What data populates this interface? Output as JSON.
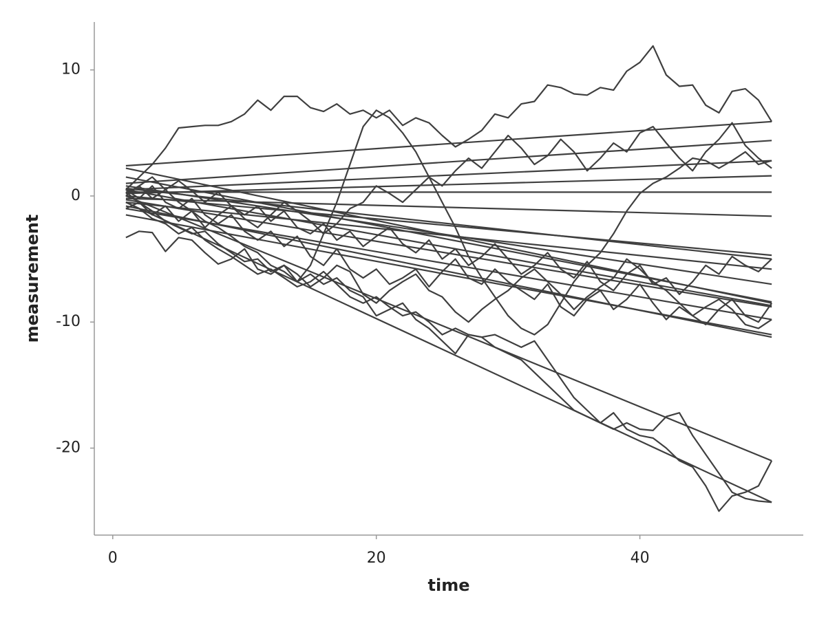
{
  "chart_data": {
    "type": "line",
    "x_label": "time",
    "y_label": "measurement",
    "color": "#3f3f3f",
    "xlim": [
      -1.4,
      52.4
    ],
    "ylim": [
      -26.9,
      13.8
    ],
    "xticks": [
      0,
      20,
      40
    ],
    "yticks": [
      -20,
      -10,
      0,
      10
    ],
    "x": [
      1,
      2,
      3,
      4,
      5,
      6,
      7,
      8,
      9,
      10,
      11,
      12,
      13,
      14,
      15,
      16,
      17,
      18,
      19,
      20,
      21,
      22,
      23,
      24,
      25,
      26,
      27,
      28,
      29,
      30,
      31,
      32,
      33,
      34,
      35,
      36,
      37,
      38,
      39,
      40,
      41,
      42,
      43,
      44,
      45,
      46,
      47,
      48,
      49,
      50
    ],
    "series": [
      {
        "values": [
          0.5,
          1.5,
          2.5,
          3.8,
          5.4,
          5.5,
          5.6,
          5.6,
          5.9,
          6.5,
          7.6,
          6.8,
          7.9,
          7.9,
          7.0,
          6.7,
          7.3,
          6.5,
          6.8,
          6.2,
          6.8,
          5.6,
          6.2,
          5.8,
          4.8,
          3.9,
          4.5,
          5.2,
          6.5,
          6.2,
          7.3,
          7.5,
          8.8,
          8.6,
          8.1,
          8.0,
          8.6,
          8.4,
          9.9,
          10.6,
          11.9,
          9.6,
          8.7,
          8.8,
          7.2,
          6.6,
          8.3,
          8.5,
          7.6,
          5.9
        ]
      },
      {
        "values": [
          0.3,
          -0.5,
          -1.2,
          -2.0,
          -2.5,
          -3.0,
          -2.8,
          -3.8,
          -4.5,
          -5.2,
          -5.0,
          -6.0,
          -5.5,
          -6.8,
          -6.2,
          -7.0,
          -6.5,
          -7.5,
          -8.0,
          -9.5,
          -9.0,
          -8.5,
          -9.8,
          -10.5,
          -11.5,
          -12.5,
          -11.0,
          -11.2,
          -12.0,
          -12.5,
          -13.0,
          -14.0,
          -15.0,
          -16.0,
          -17.0,
          -17.5,
          -18.0,
          -17.2,
          -18.5,
          -19.0,
          -19.2,
          -20.0,
          -21.0,
          -21.5,
          -23.0,
          -25.0,
          -23.8,
          -23.5,
          -23.0,
          -21.0
        ]
      },
      {
        "values": [
          -0.5,
          -1.0,
          -1.8,
          -2.2,
          -3.0,
          -2.5,
          -3.5,
          -4.2,
          -4.8,
          -5.5,
          -6.2,
          -5.8,
          -6.5,
          -7.2,
          -6.8,
          -6.0,
          -7.0,
          -8.0,
          -8.5,
          -8.0,
          -8.8,
          -9.5,
          -9.2,
          -10.0,
          -11.0,
          -10.5,
          -11.0,
          -11.2,
          -11.0,
          -11.5,
          -12.0,
          -11.5,
          -13.0,
          -14.5,
          -16.0,
          -17.0,
          -18.0,
          -18.5,
          -18.0,
          -18.5,
          -18.6,
          -17.5,
          -17.2,
          -19.0,
          -20.5,
          -22.0,
          -23.5,
          -24.0,
          -24.2,
          -24.3
        ]
      },
      {
        "values": [
          0.2,
          0.8,
          1.5,
          0.5,
          -0.5,
          -1.2,
          -2.0,
          -2.5,
          -3.2,
          -4.0,
          -4.5,
          -5.5,
          -6.0,
          -6.8,
          -5.5,
          -3.0,
          -0.5,
          2.5,
          5.5,
          6.8,
          6.2,
          5.0,
          3.5,
          1.5,
          -0.5,
          -2.5,
          -4.8,
          -6.5,
          -8.0,
          -9.5,
          -10.5,
          -11.0,
          -10.2,
          -8.5,
          -6.8,
          -5.5,
          -4.5,
          -3.0,
          -1.2,
          0.2,
          1.0,
          1.5,
          2.2,
          3.0,
          2.8,
          2.2,
          2.8,
          3.5,
          2.5,
          2.8
        ]
      },
      {
        "values": [
          0.0,
          0.8,
          -0.2,
          0.5,
          1.2,
          0.4,
          -0.5,
          0.3,
          -0.8,
          -1.5,
          -0.8,
          -2.0,
          -1.2,
          -2.5,
          -3.0,
          -2.2,
          -3.5,
          -2.8,
          -4.0,
          -3.2,
          -2.5,
          -3.8,
          -4.5,
          -3.5,
          -5.0,
          -4.2,
          -5.5,
          -4.8,
          -3.8,
          -5.0,
          -6.2,
          -5.5,
          -4.5,
          -5.8,
          -6.5,
          -5.2,
          -6.8,
          -7.5,
          -6.2,
          -5.5,
          -7.0,
          -6.5,
          -7.8,
          -6.8,
          -5.5,
          -6.2,
          -4.8,
          -5.5,
          -6.0,
          -5.0
        ]
      },
      {
        "values": [
          -1.0,
          -0.5,
          -1.5,
          -0.8,
          -2.0,
          -1.2,
          -2.5,
          -1.5,
          -0.8,
          -1.8,
          -2.5,
          -1.5,
          -0.5,
          -1.2,
          -2.0,
          -3.0,
          -2.2,
          -1.0,
          -0.5,
          0.8,
          0.2,
          -0.5,
          0.5,
          1.5,
          0.8,
          2.0,
          3.0,
          2.2,
          3.5,
          4.8,
          3.8,
          2.5,
          3.2,
          4.5,
          3.5,
          2.0,
          3.0,
          4.2,
          3.5,
          5.0,
          5.5,
          4.2,
          3.0,
          2.0,
          3.5,
          4.5,
          5.8,
          4.0,
          3.0,
          2.2
        ]
      },
      {
        "values": [
          0.5,
          -0.2,
          0.8,
          -0.5,
          -1.0,
          -0.2,
          -1.5,
          -2.2,
          -1.5,
          -2.8,
          -3.5,
          -2.8,
          -4.0,
          -3.2,
          -4.8,
          -5.5,
          -4.2,
          -5.8,
          -6.5,
          -5.8,
          -7.0,
          -6.5,
          -5.8,
          -7.2,
          -6.0,
          -5.0,
          -6.5,
          -7.0,
          -5.8,
          -6.8,
          -7.5,
          -8.2,
          -7.0,
          -8.8,
          -9.5,
          -8.2,
          -7.5,
          -9.0,
          -8.2,
          -7.0,
          -8.5,
          -9.8,
          -8.8,
          -9.5,
          -10.2,
          -9.0,
          -8.2,
          -9.5,
          -10.0,
          -8.5
        ]
      },
      {
        "values": [
          -3.3,
          -2.8,
          -2.9,
          -4.4,
          -3.3,
          -3.5,
          -4.5,
          -5.4,
          -5.0,
          -4.2,
          -5.8,
          -6.2,
          -5.5,
          -6.2,
          -7.2,
          -6.5,
          -5.5,
          -6.0,
          -7.8,
          -8.5,
          -7.5,
          -6.8,
          -6.2,
          -7.5,
          -8.0,
          -9.2,
          -10.0,
          -9.0,
          -8.2,
          -7.5,
          -6.5,
          -5.8,
          -6.8,
          -7.8,
          -9.0,
          -8.0,
          -7.2,
          -6.5,
          -5.0,
          -5.8,
          -6.8,
          -7.5,
          -8.5,
          -9.5,
          -8.8,
          -8.2,
          -9.0,
          -10.2,
          -10.5,
          -9.8
        ]
      }
    ],
    "fits": [
      {
        "x": [
          1,
          50
        ],
        "values": [
          2.4,
          5.9
        ]
      },
      {
        "x": [
          1,
          50
        ],
        "values": [
          1.0,
          4.4
        ]
      },
      {
        "x": [
          1,
          50
        ],
        "values": [
          0.5,
          2.8
        ]
      },
      {
        "x": [
          1,
          50
        ],
        "values": [
          0.2,
          1.6
        ]
      },
      {
        "x": [
          1,
          50
        ],
        "values": [
          0.3,
          0.3
        ]
      },
      {
        "x": [
          1,
          50
        ],
        "values": [
          -0.2,
          -1.6
        ]
      },
      {
        "x": [
          1,
          50
        ],
        "values": [
          0.0,
          -4.7
        ]
      },
      {
        "x": [
          1,
          50
        ],
        "values": [
          0.6,
          -5.0
        ]
      },
      {
        "x": [
          1,
          50
        ],
        "values": [
          -0.5,
          -5.8
        ]
      },
      {
        "x": [
          1,
          50
        ],
        "values": [
          0.8,
          -7.0
        ]
      },
      {
        "x": [
          1,
          50
        ],
        "values": [
          1.5,
          -8.4
        ]
      },
      {
        "x": [
          1,
          50
        ],
        "values": [
          0.5,
          -8.7
        ]
      },
      {
        "x": [
          1,
          50
        ],
        "values": [
          -0.3,
          -8.8
        ]
      },
      {
        "x": [
          1,
          50
        ],
        "values": [
          2.2,
          -8.5
        ]
      },
      {
        "x": [
          1,
          50
        ],
        "values": [
          -1.0,
          -9.8
        ]
      },
      {
        "x": [
          1,
          50
        ],
        "values": [
          -0.8,
          -11.2
        ]
      },
      {
        "x": [
          1,
          50
        ],
        "values": [
          -1.5,
          -11.0
        ]
      },
      {
        "x": [
          1,
          50
        ],
        "values": [
          0.0,
          -21.0
        ]
      },
      {
        "x": [
          1,
          50
        ],
        "values": [
          -0.5,
          -24.3
        ]
      }
    ]
  }
}
